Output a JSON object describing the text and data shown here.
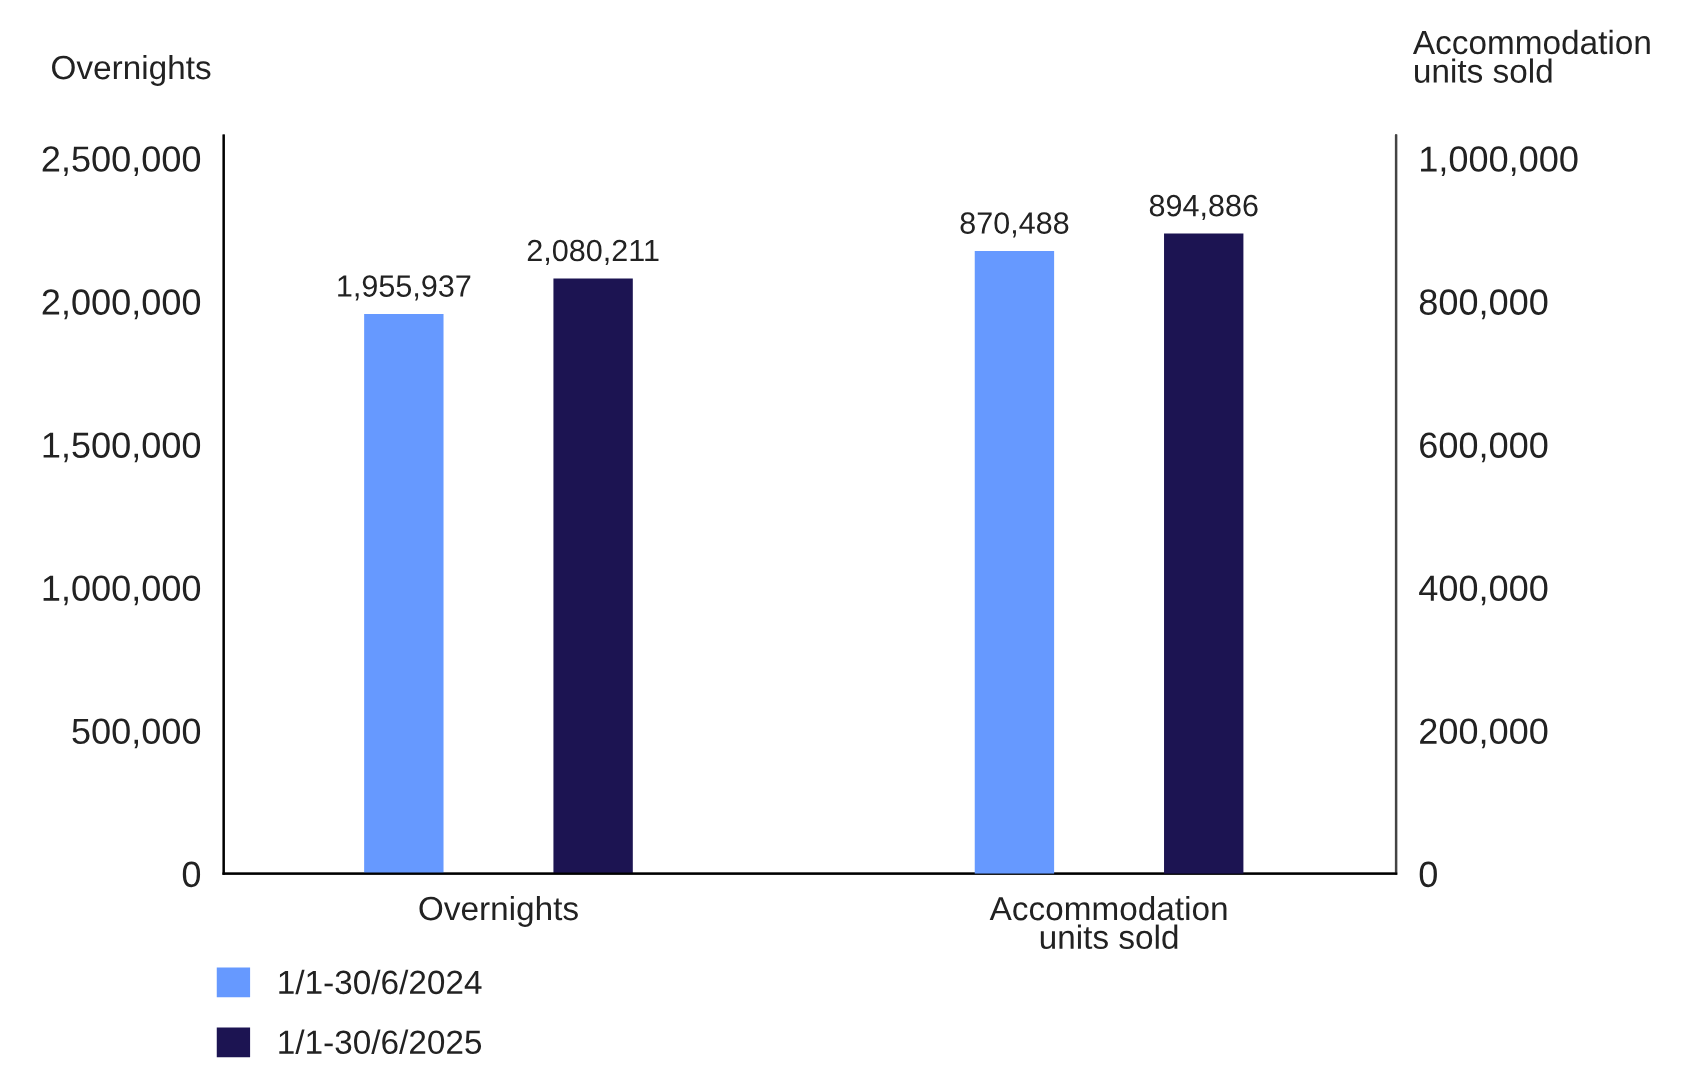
{
  "chart_data": {
    "type": "bar",
    "categories": [
      "Overnights",
      "Accommodation\nunits sold"
    ],
    "ylabel": "Overnights",
    "y2label": "Accommodation\nunits sold",
    "series": [
      {
        "name": "1/1-30/6/2024",
        "color": "#6699ff",
        "values": [
          1955937,
          null
        ],
        "value_labels": [
          "1,955,937",
          null
        ]
      },
      {
        "name": "1/1-30/6/2025",
        "color": "#1c1452",
        "values": [
          2080211,
          null
        ],
        "value_labels": [
          "2,080,211",
          null
        ]
      },
      {
        "color": "#6699ff",
        "values": [
          null,
          870488
        ],
        "value_labels": [
          null,
          "870,488"
        ],
        "axis": "y2"
      },
      {
        "color": "#1c1452",
        "values": [
          null,
          894886
        ],
        "value_labels": [
          null,
          "894,886"
        ],
        "axis": "y2"
      }
    ],
    "ylim": [
      0,
      2580000
    ],
    "yticks": [
      {
        "value": 0,
        "label": "0"
      },
      {
        "value": 500000,
        "label": "500,000"
      },
      {
        "value": 1000000,
        "label": "1,000,000"
      },
      {
        "value": 1500000,
        "label": "1,500,000"
      },
      {
        "value": 2000000,
        "label": "2,000,000"
      },
      {
        "value": 2500000,
        "label": "2,500,000"
      }
    ],
    "y2lim": [
      0,
      1032000
    ],
    "y2ticks": [
      {
        "value": 0,
        "label": "0"
      },
      {
        "value": 200000,
        "label": "200,000"
      },
      {
        "value": 400000,
        "label": "400,000"
      },
      {
        "value": 600000,
        "label": "600,000"
      },
      {
        "value": 800000,
        "label": "800,000"
      },
      {
        "value": 1000000,
        "label": "1,000,000"
      }
    ],
    "grid": false,
    "legend": "bottom left"
  }
}
